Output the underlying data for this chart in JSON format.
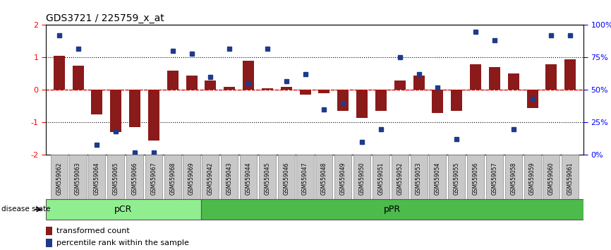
{
  "title": "GDS3721 / 225759_x_at",
  "samples": [
    "GSM559062",
    "GSM559063",
    "GSM559064",
    "GSM559065",
    "GSM559066",
    "GSM559067",
    "GSM559068",
    "GSM559069",
    "GSM559042",
    "GSM559043",
    "GSM559044",
    "GSM559045",
    "GSM559046",
    "GSM559047",
    "GSM559048",
    "GSM559049",
    "GSM559050",
    "GSM559051",
    "GSM559052",
    "GSM559053",
    "GSM559054",
    "GSM559055",
    "GSM559056",
    "GSM559057",
    "GSM559058",
    "GSM559059",
    "GSM559060",
    "GSM559061"
  ],
  "transformed_count": [
    1.05,
    0.75,
    -0.75,
    -1.3,
    -1.15,
    -1.55,
    0.6,
    0.45,
    0.3,
    0.1,
    0.9,
    0.05,
    0.1,
    -0.15,
    -0.1,
    -0.65,
    -0.85,
    -0.65,
    0.3,
    0.45,
    -0.7,
    -0.65,
    0.8,
    0.7,
    0.5,
    -0.55,
    0.8,
    0.95
  ],
  "percentile_rank_pct": [
    92,
    82,
    8,
    18,
    2,
    2,
    80,
    78,
    60,
    82,
    55,
    82,
    57,
    62,
    35,
    40,
    10,
    20,
    75,
    62,
    52,
    12,
    95,
    88,
    20,
    43,
    92,
    92
  ],
  "pCR_count": 8,
  "pPR_count": 20,
  "bar_color": "#8B1A1A",
  "dot_color": "#1E3A8A",
  "ylim_left": [
    -2.0,
    2.0
  ],
  "ylim_right": [
    0,
    100
  ],
  "yticks_left": [
    -2,
    -1,
    0,
    1,
    2
  ],
  "yticks_right": [
    0,
    25,
    50,
    75,
    100
  ],
  "dotted_line_y": [
    1.0,
    -1.0
  ],
  "zero_line_color": "#CC0000",
  "pcr_color": "#90EE90",
  "ppr_color": "#4CBB4C",
  "disease_state_label": "disease state",
  "pcr_label": "pCR",
  "ppr_label": "pPR",
  "legend_transformed": "transformed count",
  "legend_percentile": "percentile rank within the sample"
}
